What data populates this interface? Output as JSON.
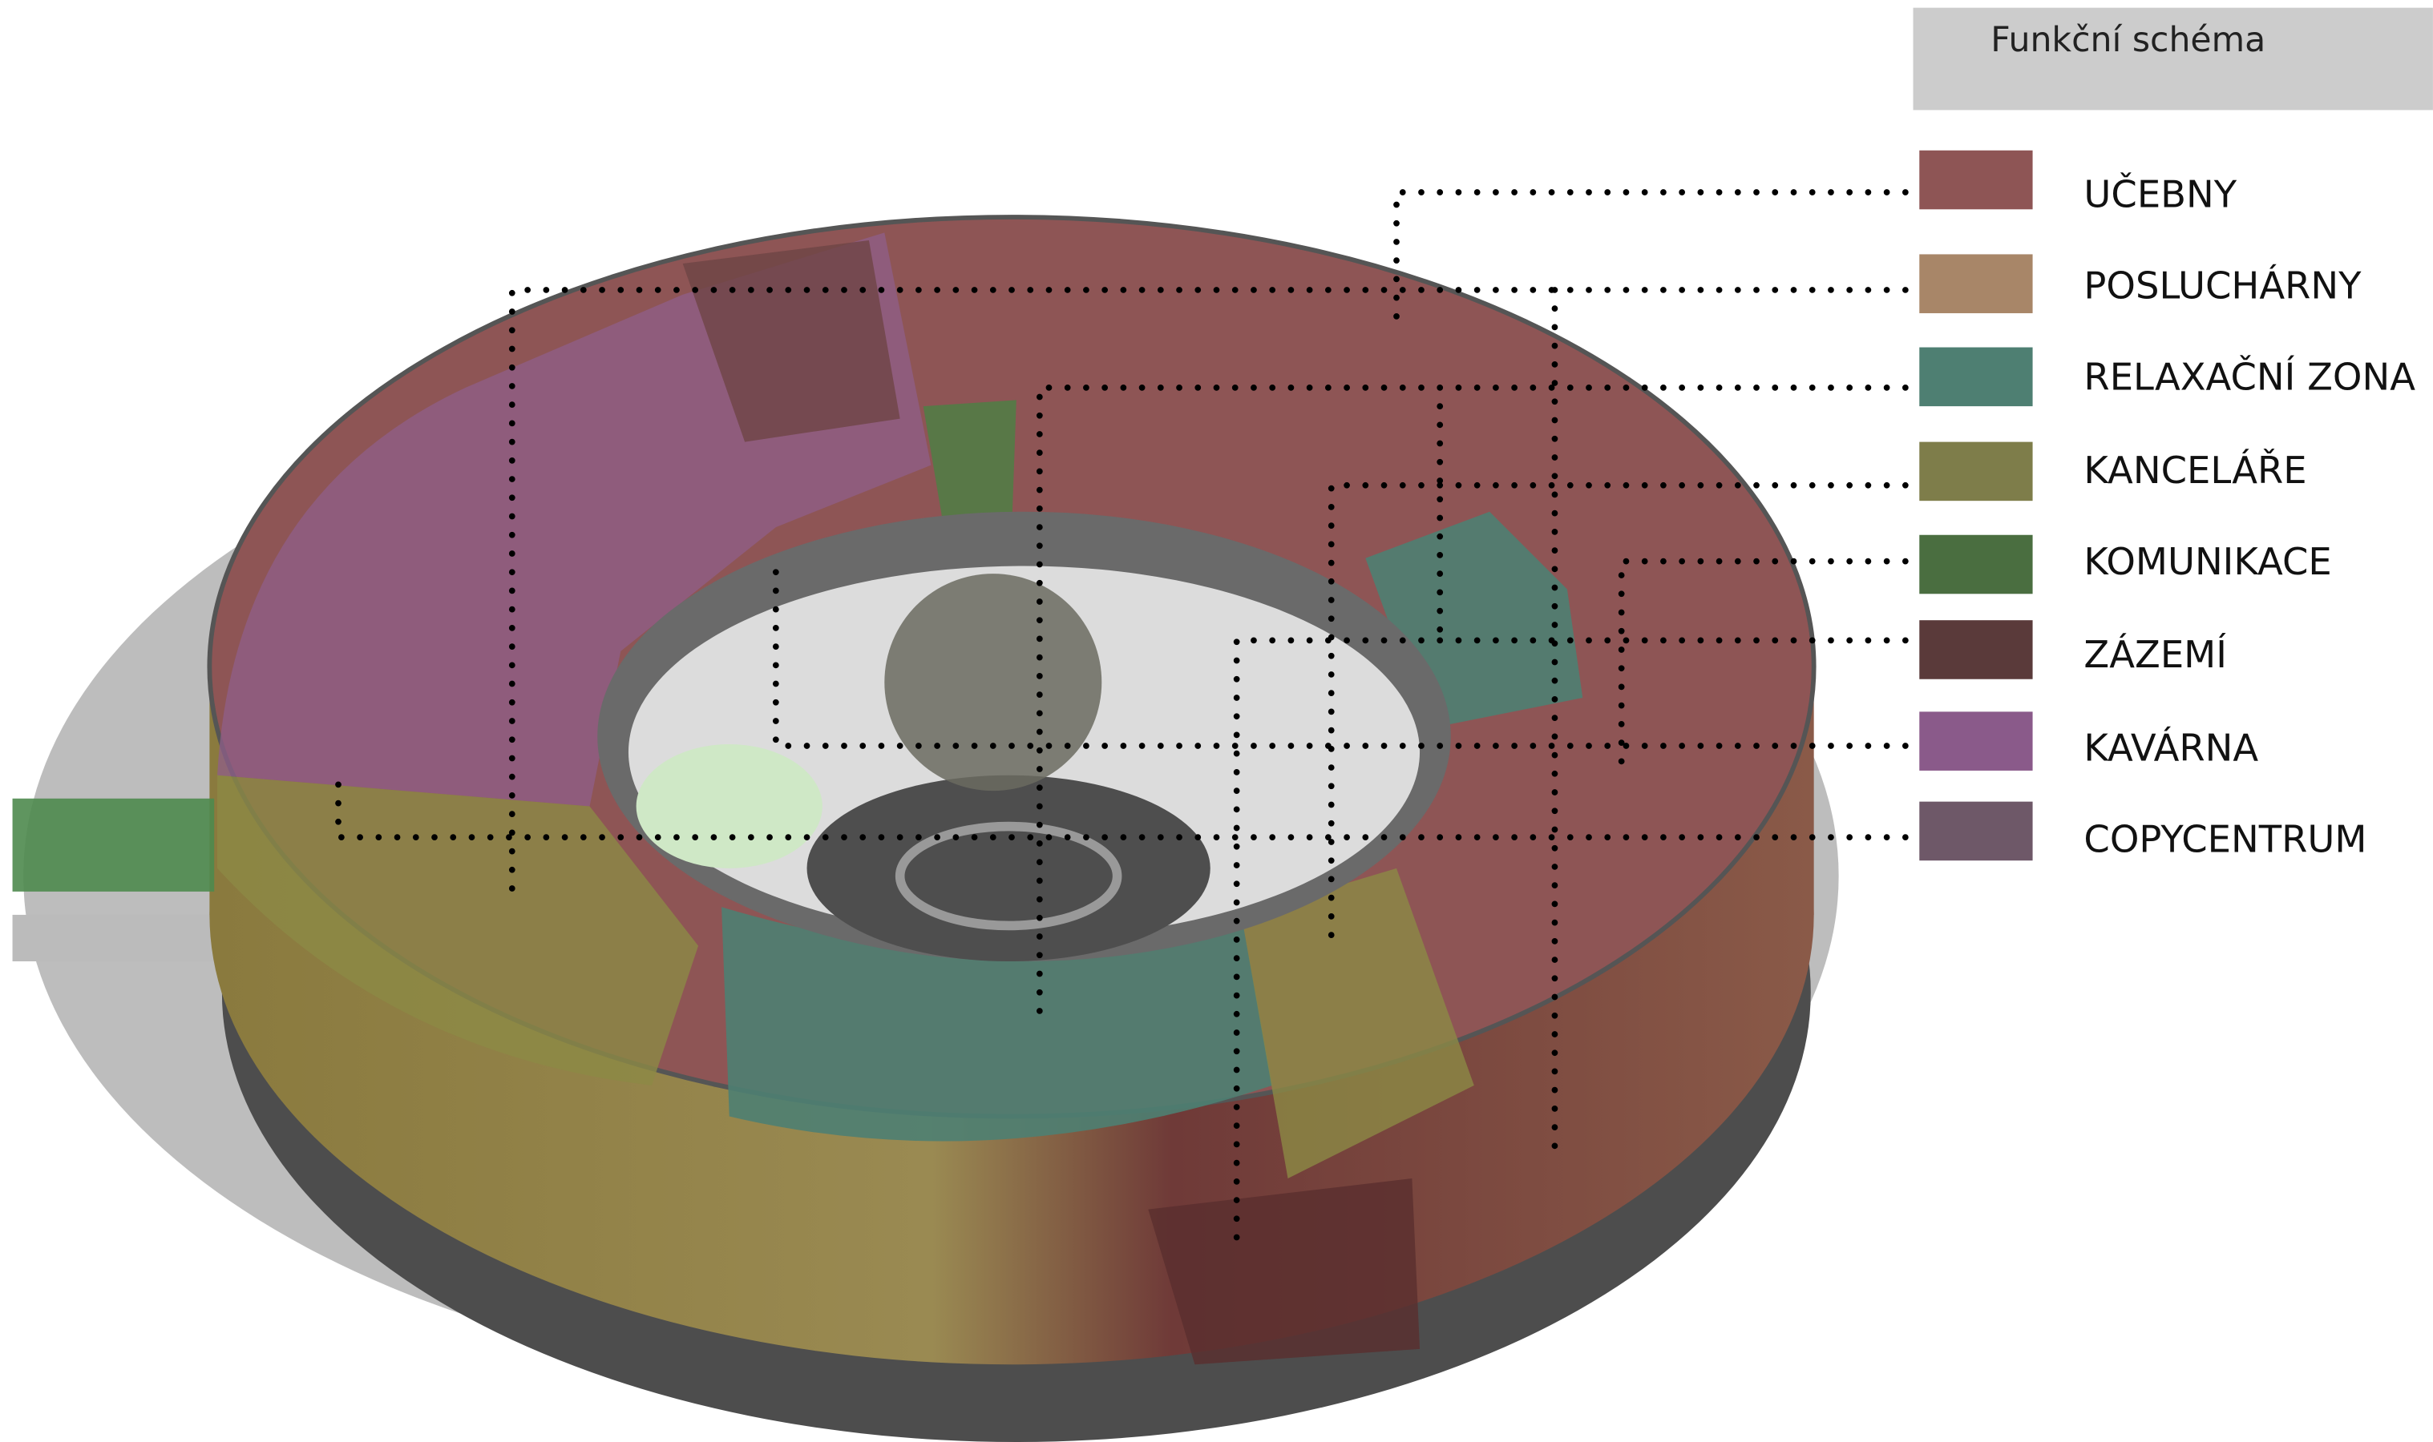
{
  "header": {
    "title": "Funkční schéma"
  },
  "legend": {
    "items": [
      {
        "label": "UČEBNY"
      },
      {
        "label": "POSLUCHÁRNY"
      },
      {
        "label": "RELAXAČNÍ ZONA"
      },
      {
        "label": "KANCELÁŘE"
      },
      {
        "label": "KOMUNIKACE"
      },
      {
        "label": "ZÁZEMÍ"
      },
      {
        "label": "KAVÁRNA"
      },
      {
        "label": "COPYCENTRUM"
      }
    ]
  }
}
